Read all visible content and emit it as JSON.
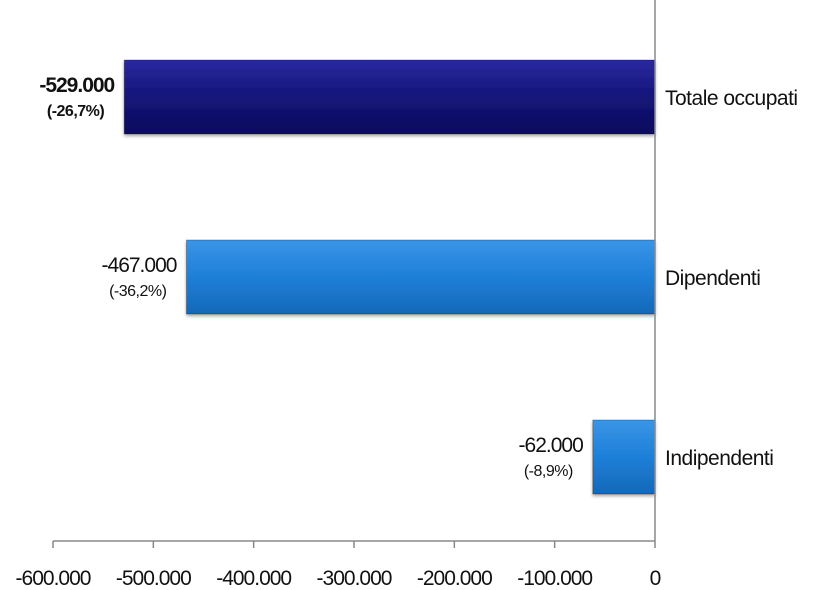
{
  "chart_data": {
    "type": "bar",
    "orientation": "horizontal",
    "categories": [
      "Totale occupati",
      "Dipendenti",
      "Indipendenti"
    ],
    "values": [
      -529000,
      -467000,
      -62000
    ],
    "value_labels": [
      "-529.000",
      "-467.000",
      "-62.000"
    ],
    "pct_labels": [
      "(-26,7%)",
      "(-36,2%)",
      "(-8,9%)"
    ],
    "bold": [
      true,
      false,
      false
    ],
    "colors": [
      "#14147a",
      "#1e7fd8",
      "#1e7fd8"
    ],
    "xlim": [
      -600000,
      0
    ],
    "xticks": [
      -600000,
      -500000,
      -400000,
      -300000,
      -200000,
      -100000,
      0
    ],
    "xtick_labels": [
      "-600.000",
      "-500.000",
      "-400.000",
      "-300.000",
      "-200.000",
      "-100.000",
      "0"
    ],
    "grid": false,
    "title": "",
    "xlabel": "",
    "ylabel": ""
  }
}
